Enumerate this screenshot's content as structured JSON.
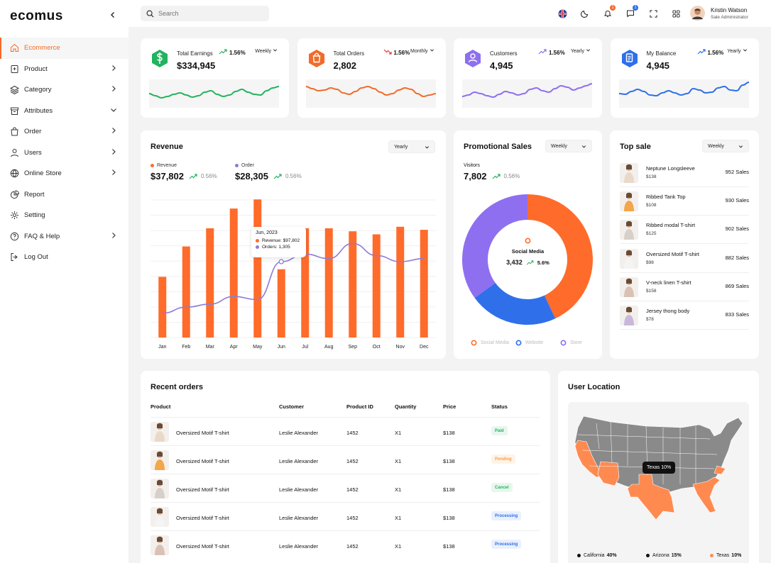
{
  "app": {
    "logo": "ecomus"
  },
  "sidebar": {
    "items": [
      {
        "label": "Ecommerce",
        "icon": "home-icon",
        "active": true,
        "chevron": ""
      },
      {
        "label": "Product",
        "icon": "product-icon",
        "chevron": "right"
      },
      {
        "label": "Category",
        "icon": "layers-icon",
        "chevron": "right"
      },
      {
        "label": "Attributes",
        "icon": "archive-icon",
        "chevron": "down"
      },
      {
        "label": "Order",
        "icon": "bag-icon",
        "chevron": "right"
      },
      {
        "label": "Users",
        "icon": "user-icon",
        "chevron": "right"
      },
      {
        "label": "Online Store",
        "icon": "globe-icon",
        "chevron": "right"
      },
      {
        "label": "Report",
        "icon": "pie-icon",
        "chevron": ""
      },
      {
        "label": "Setting",
        "icon": "gear-icon",
        "chevron": ""
      },
      {
        "label": "FAQ & Help",
        "icon": "help-icon",
        "chevron": "right"
      },
      {
        "label": "Log Out",
        "icon": "logout-icon",
        "chevron": ""
      }
    ]
  },
  "topbar": {
    "search_placeholder": "Search",
    "notif_count": "1",
    "msg_count": "1",
    "user": {
      "name": "Kristin Watson",
      "role": "Sale Administrator"
    }
  },
  "stats": [
    {
      "label": "Total Earnings",
      "value": "$334,945",
      "trend": "1.56%",
      "trend_dir": "up",
      "period": "Weekly",
      "color": "#22b35e"
    },
    {
      "label": "Total Orders",
      "value": "2,802",
      "trend": "1.56%",
      "trend_dir": "down",
      "period": "Monthly",
      "color": "#f26b2a"
    },
    {
      "label": "Customers",
      "value": "4,945",
      "trend": "1.56%",
      "trend_dir": "up",
      "period": "Yearly",
      "color": "#8e6ff0"
    },
    {
      "label": "My Balance",
      "value": "4,945",
      "trend": "1.56%",
      "trend_dir": "up",
      "period": "Yearly",
      "color": "#2f6fea"
    }
  ],
  "revenue": {
    "title": "Revenue",
    "period": "Yearly",
    "revenue_label": "Revenue",
    "revenue_value": "$37,802",
    "revenue_pct": "0.56%",
    "order_label": "Order",
    "order_value": "$28,305",
    "order_pct": "0.56%",
    "tooltip": {
      "title": "Jun, 2023",
      "revenue": "Revenue: $97,802",
      "orders": "Orders: 1,305"
    }
  },
  "chart_data": {
    "type": "bar",
    "categories": [
      "Jan",
      "Feb",
      "Mar",
      "Apr",
      "May",
      "Jun",
      "Jul",
      "Aug",
      "Sep",
      "Oct",
      "Nov",
      "Dec"
    ],
    "series": [
      {
        "name": "Revenue",
        "values": [
          40,
          60,
          72,
          85,
          91,
          45,
          72,
          72,
          70,
          68,
          73,
          71
        ]
      },
      {
        "name": "Order",
        "values": [
          16,
          20,
          22,
          27,
          25,
          50,
          55,
          52,
          62,
          54,
          50,
          52
        ]
      }
    ],
    "ylim": [
      0,
      100
    ],
    "grid": true,
    "colors": {
      "revenue": "#ff6b2b",
      "order": "#8e7bd8"
    }
  },
  "promo": {
    "title": "Promotional Sales",
    "period": "Weekly",
    "visitors_label": "Visitors",
    "visitors_value": "7,802",
    "visitors_pct": "0.56%",
    "center_label": "Social Media",
    "center_value": "3,432",
    "center_pct": "5.6%",
    "donut": [
      {
        "name": "Social Media",
        "value": 43,
        "color": "#ff6b2b"
      },
      {
        "name": "Website",
        "value": 22,
        "color": "#2f6fea"
      },
      {
        "name": "Store",
        "value": 35,
        "color": "#8e6ff0"
      }
    ]
  },
  "top_sale": {
    "title": "Top sale",
    "period": "Weekly",
    "items": [
      {
        "name": "Neptune Longsleeve",
        "price": "$138",
        "sales": "952 Sales",
        "tone": "#e9d9c9"
      },
      {
        "name": "Ribbed Tank Top",
        "price": "$108",
        "sales": "930 Sales",
        "tone": "#f3a64a"
      },
      {
        "name": "Ribbed modal T-shirt",
        "price": "$125",
        "sales": "902 Sales",
        "tone": "#d8d0c8"
      },
      {
        "name": "Oversized Motif T-shirt",
        "price": "$98",
        "sales": "882 Sales",
        "tone": "#f4f4f4"
      },
      {
        "name": "V-neck linen T-shirt",
        "price": "$158",
        "sales": "869 Sales",
        "tone": "#d9c2b4"
      },
      {
        "name": "Jersey thong body",
        "price": "$78",
        "sales": "833 Sales",
        "tone": "#c9b8dc"
      }
    ]
  },
  "orders": {
    "title": "Recent orders",
    "columns": [
      "Product",
      "Customer",
      "Product ID",
      "Quantity",
      "Price",
      "Status"
    ],
    "rows": [
      {
        "product": "Oversized Motif T-shirt",
        "customer": "Leslie Alexander",
        "id": "1452",
        "qty": "X1",
        "price": "$138",
        "status": "Paid",
        "tone": "#e9d9c9"
      },
      {
        "product": "Oversized Motif T-shirt",
        "customer": "Leslie Alexander",
        "id": "1452",
        "qty": "X1",
        "price": "$138",
        "status": "Pending",
        "tone": "#f3a64a"
      },
      {
        "product": "Oversized Motif T-shirt",
        "customer": "Leslie Alexander",
        "id": "1452",
        "qty": "X1",
        "price": "$138",
        "status": "Cancel",
        "tone": "#d8d0c8"
      },
      {
        "product": "Oversized Motif T-shirt",
        "customer": "Leslie Alexander",
        "id": "1452",
        "qty": "X1",
        "price": "$138",
        "status": "Processing",
        "tone": "#f4f4f4"
      },
      {
        "product": "Oversized Motif T-shirt",
        "customer": "Leslie Alexander",
        "id": "1452",
        "qty": "X1",
        "price": "$138",
        "status": "Processing",
        "tone": "#d9c2b4"
      }
    ],
    "status_colors": {
      "Paid": [
        "#e8f7ee",
        "#22b35e"
      ],
      "Pending": [
        "#fff3e6",
        "#f5a04a"
      ],
      "Cancel": [
        "#e8f7ee",
        "#22b35e"
      ],
      "Processing": [
        "#eaf0fd",
        "#2f6fea"
      ]
    }
  },
  "location": {
    "title": "User Location",
    "tooltip": "Texas 10%",
    "legend": [
      {
        "label": "California",
        "value": "40%",
        "color": "#111"
      },
      {
        "label": "Arizona",
        "value": "15%",
        "color": "#111"
      },
      {
        "label": "Texas",
        "value": "10%",
        "color": "#ff8a50"
      }
    ]
  }
}
